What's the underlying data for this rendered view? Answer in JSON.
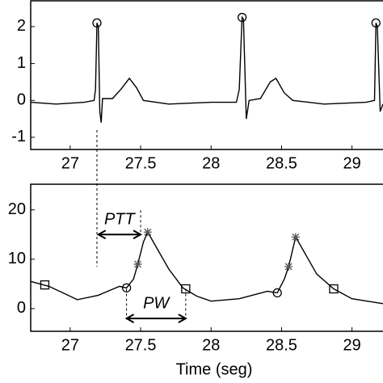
{
  "chart_data": [
    {
      "type": "line",
      "xlim": [
        26.72,
        29.22
      ],
      "xticks": [
        27,
        27.5,
        28,
        28.5,
        29
      ],
      "ylim": [
        -1.33,
        2.7
      ],
      "yticks": [
        -1,
        0,
        1,
        2
      ],
      "series": [
        {
          "style": "line",
          "color": "#000000",
          "x": [
            26.72,
            26.9,
            27.1,
            27.17,
            27.18,
            27.19,
            27.2,
            27.21,
            27.22,
            27.23,
            27.3,
            27.36,
            27.42,
            27.47,
            27.52,
            27.7,
            28.0,
            28.18,
            28.2,
            28.22,
            28.23,
            28.25,
            28.27,
            28.35,
            28.42,
            28.46,
            28.52,
            28.58,
            28.8,
            29.1,
            29.16,
            29.17,
            29.18,
            29.2,
            29.22
          ],
          "values": [
            -0.05,
            -0.1,
            -0.05,
            0,
            0.3,
            2.1,
            2.0,
            -0.3,
            -0.6,
            0.05,
            0.05,
            0.3,
            0.6,
            0.35,
            0.0,
            -0.1,
            -0.05,
            -0.05,
            0.3,
            2.25,
            2.2,
            -0.5,
            0.0,
            0.05,
            0.5,
            0.6,
            0.2,
            0.0,
            -0.1,
            -0.05,
            0.0,
            2.1,
            2.0,
            -0.3,
            -0.1
          ]
        },
        {
          "style": "circle",
          "color": "#000000",
          "x": [
            27.19,
            28.22,
            29.17
          ],
          "values": [
            2.1,
            2.25,
            2.1
          ]
        }
      ]
    },
    {
      "type": "line",
      "xlabel": "Time (seg)",
      "xlim": [
        26.72,
        29.22
      ],
      "xticks": [
        27,
        27.5,
        28,
        28.5,
        29
      ],
      "ylim": [
        -4.6,
        25.2
      ],
      "yticks": [
        0,
        10,
        20
      ],
      "series": [
        {
          "style": "line",
          "color": "#000000",
          "x": [
            26.72,
            26.85,
            27.0,
            27.05,
            27.2,
            27.35,
            27.4,
            27.45,
            27.48,
            27.52,
            27.55,
            27.6,
            27.7,
            27.8,
            27.9,
            28.0,
            28.2,
            28.4,
            28.47,
            28.52,
            28.55,
            28.6,
            28.65,
            28.75,
            28.87,
            29.0,
            29.22
          ],
          "values": [
            5.5,
            4.5,
            2.5,
            1.8,
            2.7,
            4.5,
            4.2,
            6,
            9,
            13.5,
            15.5,
            13,
            8,
            4.2,
            2.5,
            1.5,
            2,
            3.5,
            3.2,
            6,
            8.5,
            14.5,
            12,
            7,
            4,
            2,
            1
          ]
        },
        {
          "style": "square",
          "color": "#000000",
          "x": [
            26.82,
            27.82,
            28.87
          ],
          "values": [
            4.8,
            4.0,
            4.0
          ]
        },
        {
          "style": "circle",
          "color": "#000000",
          "x": [
            27.4,
            28.47
          ],
          "values": [
            4.2,
            3.2
          ]
        },
        {
          "style": "star",
          "color": "#555555",
          "x": [
            27.48,
            27.55,
            28.55,
            28.6
          ],
          "values": [
            9,
            15.5,
            8.5,
            14.5
          ]
        }
      ],
      "annotations": [
        {
          "text": "PTT",
          "x": [
            27.2,
            27.5
          ],
          "y": 15
        },
        {
          "text": "PW",
          "x": [
            27.4,
            27.82
          ],
          "y": -2
        }
      ]
    }
  ]
}
